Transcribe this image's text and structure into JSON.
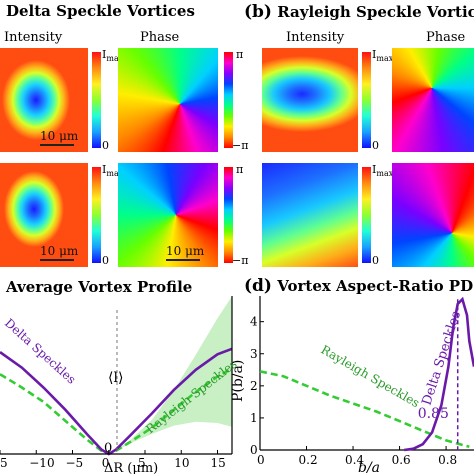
{
  "panel_a": {
    "title": "Delta Speckle Vortices",
    "intensity_label": "Intensity",
    "phase_label": "Phase",
    "scale_label": "10 μm",
    "cbar_intensity_top": "I",
    "cbar_intensity_top_sub": "max",
    "cbar_intensity_bottom": "0",
    "cbar_phase_top": "π",
    "cbar_phase_bottom": "−π"
  },
  "panel_b": {
    "letter": "(b)",
    "title": "Rayleigh Speckle Vortic",
    "intensity_label": "Intensity",
    "phase_label": "Phase",
    "cbar_intensity_top": "I",
    "cbar_intensity_top_sub": "max",
    "cbar_intensity_bottom": "0"
  },
  "panel_c": {
    "title": "Average Vortex Profile",
    "annotation_l": "⟨l⟩",
    "zero_label": "0",
    "delta_label": "Delta Speckles",
    "rayleigh_label": "Rayleigh Speckles",
    "xlabel": "ΔR (μm)",
    "colors": {
      "delta": "#6a1aa8",
      "rayleigh": "#33cc33",
      "band": "#c9efc4"
    }
  },
  "panel_d": {
    "letter": "(d)",
    "title": "Vortex Aspect-Ratio PD",
    "ylabel": "P(b/a)",
    "xlabel": "b/a",
    "delta_label": "Delta Speckles",
    "rayleigh_label": "Rayleigh Speckles",
    "peak_value": "0.85",
    "colors": {
      "delta": "#6a1aa8",
      "rayleigh": "#33cc33"
    }
  },
  "chart_data": [
    {
      "type": "line",
      "title": "Average Vortex Profile",
      "xlabel": "ΔR (μm)",
      "ylabel": "",
      "xlim": [
        -15,
        17
      ],
      "ylim": [
        0,
        1.3
      ],
      "x_ticks": [
        "5",
        "−10",
        "−5",
        "0",
        "5",
        "10",
        "15"
      ],
      "series": [
        {
          "name": "Delta Speckles",
          "x": [
            -15,
            -12,
            -9,
            -6,
            -3,
            -1,
            0,
            1,
            3,
            6,
            9,
            12,
            15,
            17
          ],
          "y": [
            0.92,
            0.78,
            0.6,
            0.4,
            0.18,
            0.04,
            0.0,
            0.04,
            0.17,
            0.37,
            0.58,
            0.76,
            0.9,
            0.95
          ]
        },
        {
          "name": "Rayleigh Speckles",
          "x": [
            -15,
            -12,
            -9,
            -6,
            -3,
            -1,
            0,
            1,
            3,
            6,
            9,
            12,
            15,
            17
          ],
          "y": [
            0.72,
            0.6,
            0.47,
            0.3,
            0.13,
            0.03,
            0.0,
            0.03,
            0.11,
            0.24,
            0.4,
            0.56,
            0.7,
            0.77
          ]
        }
      ]
    },
    {
      "type": "line",
      "title": "Vortex Aspect-Ratio PD",
      "xlabel": "b/a",
      "ylabel": "P(b/a)",
      "xlim": [
        0,
        0.92
      ],
      "ylim": [
        0,
        4.8
      ],
      "x_ticks": [
        0,
        0.2,
        0.4,
        0.6,
        0.8
      ],
      "y_ticks": [
        0,
        1,
        2,
        3,
        4
      ],
      "series": [
        {
          "name": "Rayleigh Speckles",
          "x": [
            0,
            0.1,
            0.2,
            0.3,
            0.4,
            0.5,
            0.6,
            0.7,
            0.8,
            0.85,
            0.9
          ],
          "y": [
            2.45,
            2.3,
            2.0,
            1.7,
            1.45,
            1.2,
            0.9,
            0.6,
            0.3,
            0.2,
            0.1
          ]
        },
        {
          "name": "Delta Speckles",
          "x": [
            0.62,
            0.66,
            0.7,
            0.74,
            0.78,
            0.81,
            0.83,
            0.85,
            0.87,
            0.89,
            0.9,
            0.92
          ],
          "y": [
            0.0,
            0.04,
            0.18,
            0.55,
            1.4,
            2.6,
            3.8,
            4.55,
            4.7,
            4.2,
            3.4,
            2.6
          ]
        }
      ],
      "annotations": [
        {
          "text": "0.85",
          "x": 0.85
        }
      ]
    }
  ]
}
